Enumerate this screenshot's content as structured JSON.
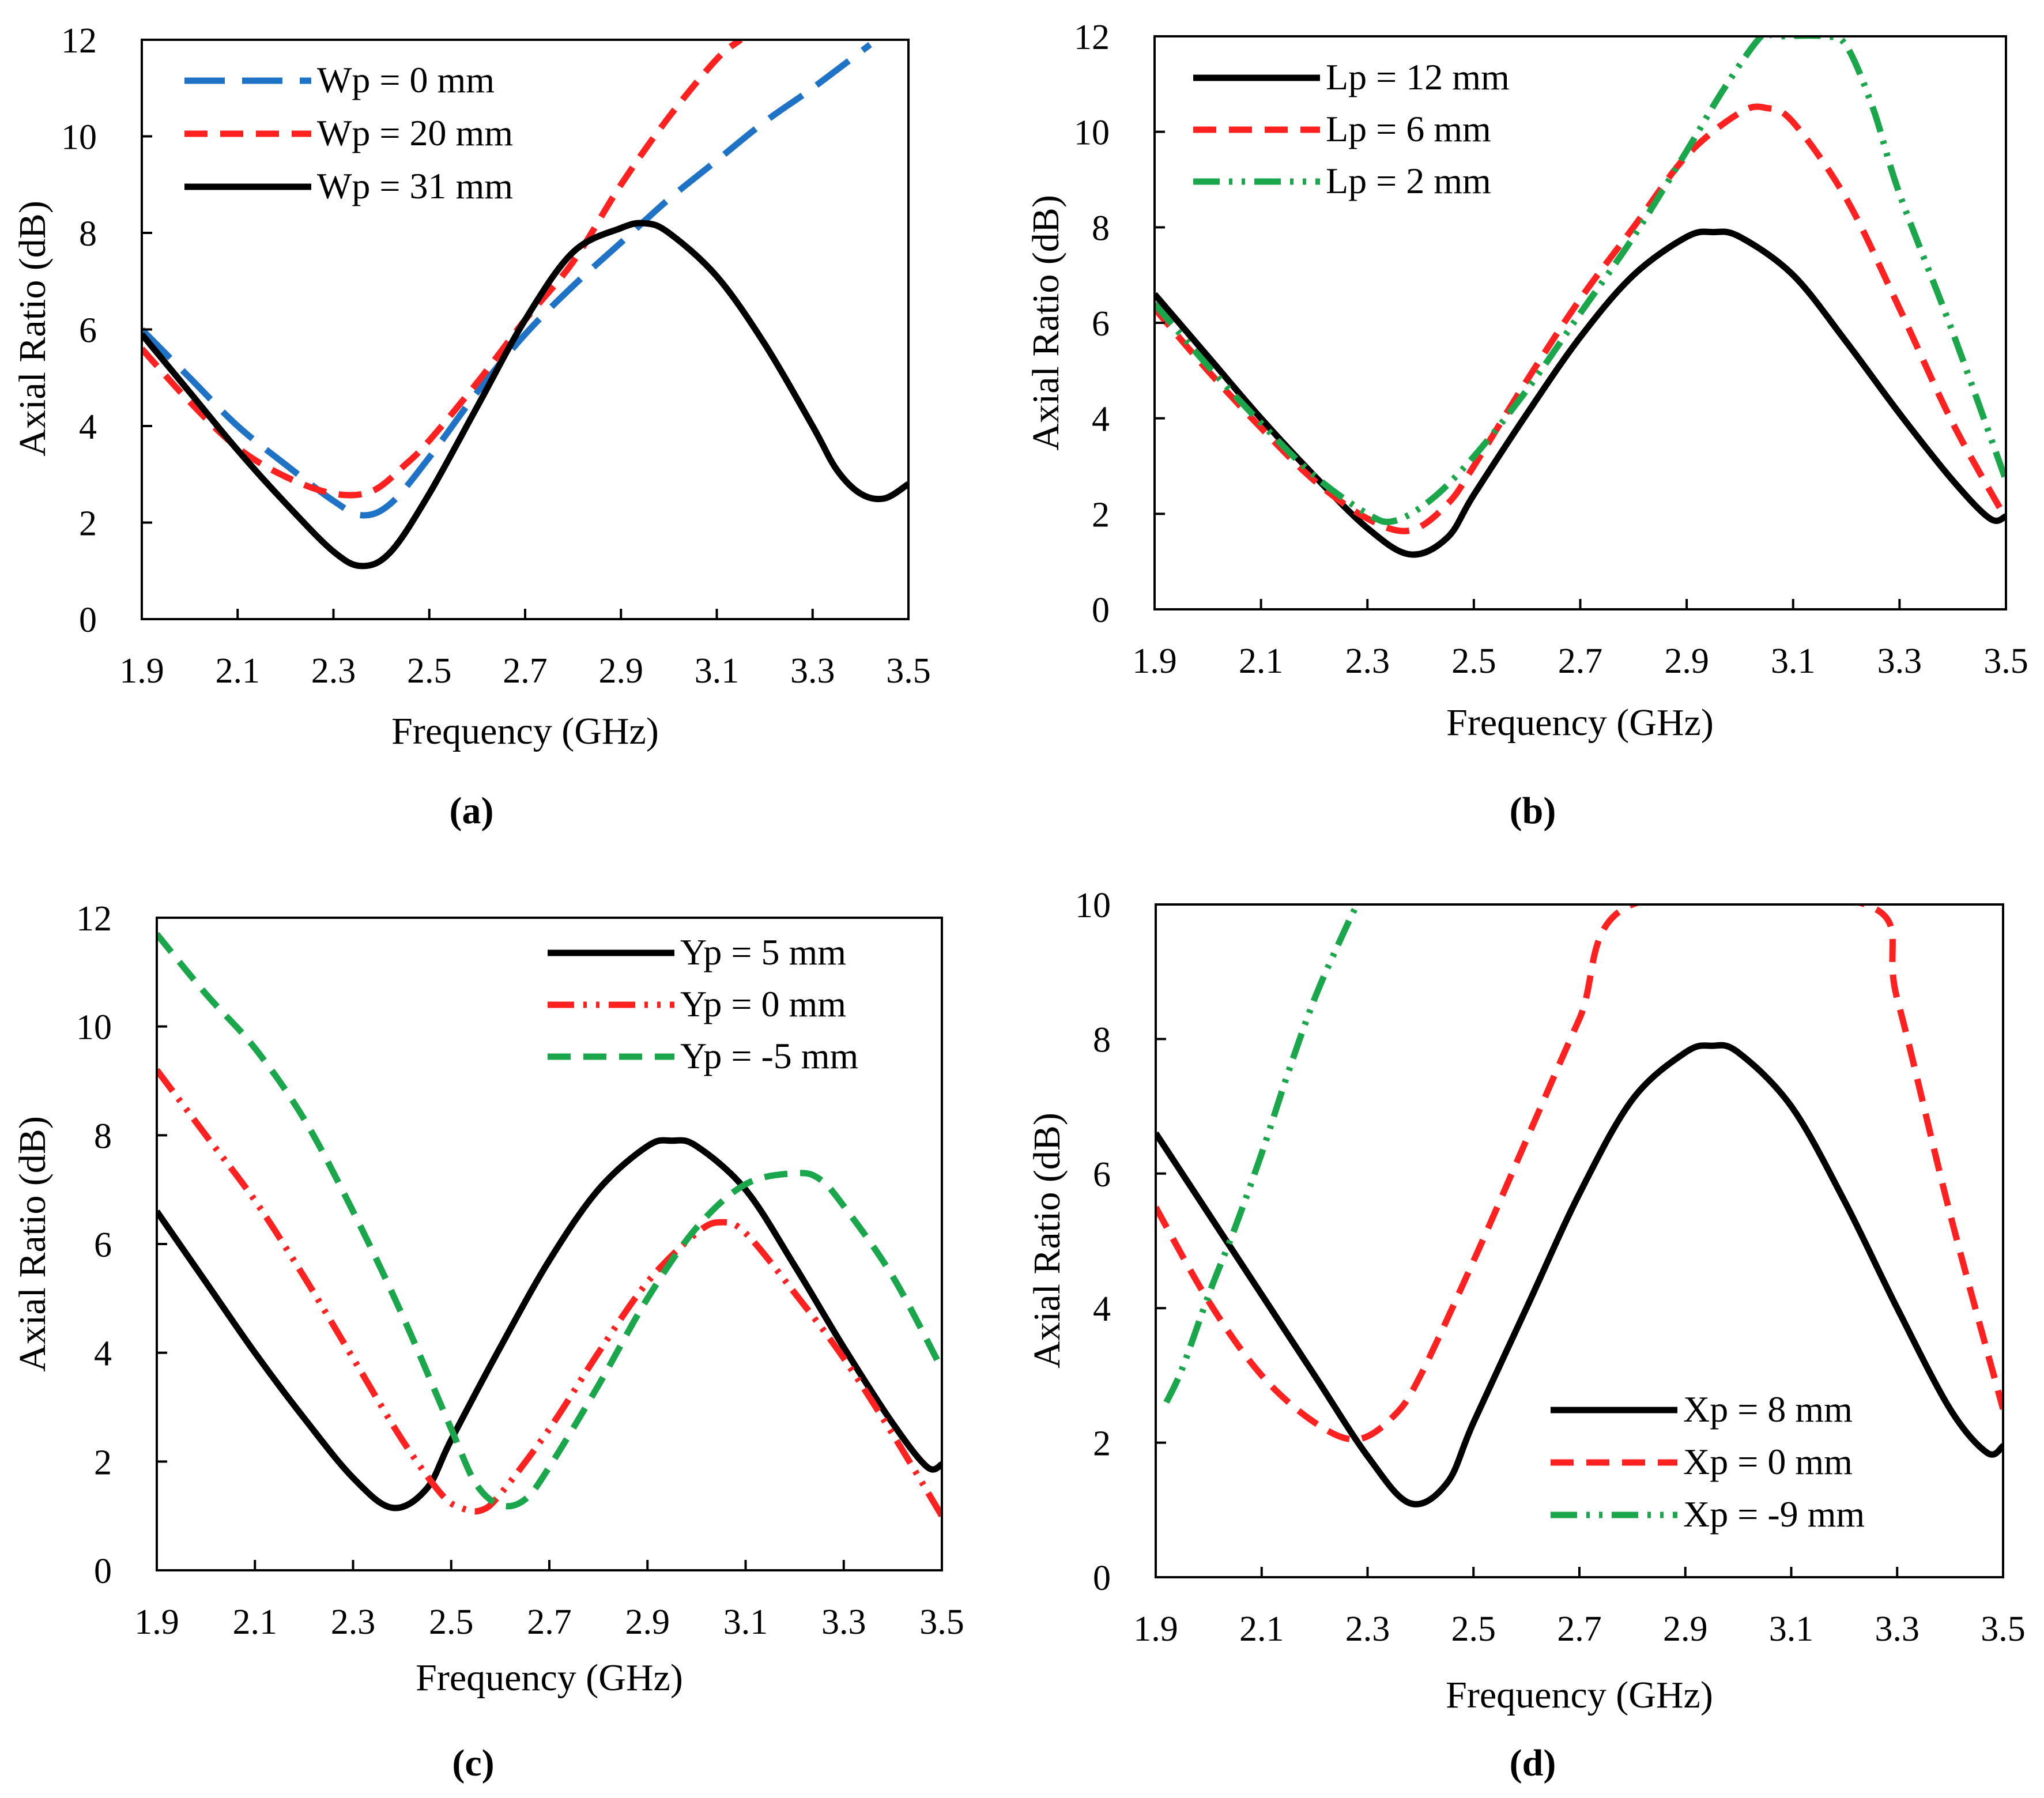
{
  "figure": {
    "panel_labels": [
      "(a)",
      "(b)",
      "(c)",
      "(d)"
    ]
  },
  "chart_data": [
    {
      "type": "line",
      "panel": "a",
      "title": "",
      "xlabel": "Frequency (GHz)",
      "ylabel": "Axial Ratio (dB)",
      "xlim": [
        1.9,
        3.5
      ],
      "ylim": [
        0,
        12
      ],
      "xticks": [
        "1.9",
        "2.1",
        "2.3",
        "2.5",
        "2.7",
        "2.9",
        "3.1",
        "3.3",
        "3.5"
      ],
      "yticks": [
        "0",
        "2",
        "4",
        "6",
        "8",
        "10",
        "12"
      ],
      "legend_position": "top-left",
      "series": [
        {
          "name": "Wp = 0 mm",
          "color": "#1f73c6",
          "style": "long-dash",
          "x": [
            1.9,
            2.0,
            2.1,
            2.2,
            2.3,
            2.36,
            2.42,
            2.5,
            2.6,
            2.7,
            2.8,
            2.9,
            3.0,
            3.1,
            3.2,
            3.3,
            3.42
          ],
          "y": [
            6.0,
            5.0,
            4.0,
            3.2,
            2.45,
            2.15,
            2.4,
            3.35,
            4.7,
            5.9,
            6.9,
            7.8,
            8.7,
            9.5,
            10.3,
            11.0,
            11.9
          ]
        },
        {
          "name": "Wp = 20 mm",
          "color": "#ff2020",
          "style": "dash",
          "x": [
            1.9,
            2.0,
            2.1,
            2.2,
            2.3,
            2.38,
            2.45,
            2.5,
            2.6,
            2.7,
            2.8,
            2.9,
            3.0,
            3.1,
            3.15
          ],
          "y": [
            5.6,
            4.5,
            3.55,
            2.95,
            2.6,
            2.65,
            3.2,
            3.7,
            4.9,
            6.2,
            7.4,
            9.0,
            10.4,
            11.6,
            12.0
          ]
        },
        {
          "name": "Wp = 31 mm",
          "color": "#000000",
          "style": "solid",
          "x": [
            1.9,
            2.0,
            2.1,
            2.2,
            2.3,
            2.36,
            2.42,
            2.5,
            2.6,
            2.7,
            2.8,
            2.9,
            2.95,
            3.0,
            3.1,
            3.2,
            3.3,
            3.35,
            3.4,
            3.45,
            3.5
          ],
          "y": [
            5.9,
            4.7,
            3.5,
            2.4,
            1.4,
            1.1,
            1.4,
            2.6,
            4.4,
            6.2,
            7.6,
            8.1,
            8.2,
            8.0,
            7.1,
            5.7,
            4.0,
            3.1,
            2.6,
            2.5,
            2.8
          ]
        }
      ]
    },
    {
      "type": "line",
      "panel": "b",
      "title": "",
      "xlabel": "Frequency (GHz)",
      "ylabel": "Axial Ratio (dB)",
      "xlim": [
        1.9,
        3.5
      ],
      "ylim": [
        0,
        12
      ],
      "xticks": [
        "1.9",
        "2.1",
        "2.3",
        "2.5",
        "2.7",
        "2.9",
        "3.1",
        "3.3",
        "3.5"
      ],
      "yticks": [
        "0",
        "2",
        "4",
        "6",
        "8",
        "10",
        "12"
      ],
      "legend_position": "top-left",
      "series": [
        {
          "name": "Lp = 12 mm",
          "color": "#000000",
          "style": "solid",
          "x": [
            1.9,
            2.0,
            2.1,
            2.2,
            2.3,
            2.38,
            2.45,
            2.5,
            2.6,
            2.7,
            2.8,
            2.9,
            2.95,
            3.0,
            3.1,
            3.2,
            3.3,
            3.4,
            3.47,
            3.5
          ],
          "y": [
            6.6,
            5.3,
            4.0,
            2.8,
            1.7,
            1.15,
            1.5,
            2.4,
            4.1,
            5.7,
            7.0,
            7.8,
            7.9,
            7.8,
            7.0,
            5.6,
            4.1,
            2.7,
            1.9,
            1.95
          ]
        },
        {
          "name": "Lp = 6 mm",
          "color": "#ff2020",
          "style": "dash",
          "x": [
            1.9,
            2.0,
            2.1,
            2.2,
            2.3,
            2.38,
            2.45,
            2.5,
            2.6,
            2.7,
            2.8,
            2.9,
            3.0,
            3.05,
            3.1,
            3.2,
            3.3,
            3.4,
            3.5
          ],
          "y": [
            6.3,
            5.0,
            3.8,
            2.7,
            1.9,
            1.65,
            2.2,
            3.0,
            4.8,
            6.5,
            8.0,
            9.5,
            10.4,
            10.5,
            10.2,
            8.6,
            6.3,
            3.9,
            1.9
          ]
        },
        {
          "name": "Lp = 2 mm",
          "color": "#1aa64a",
          "style": "dash-dot-dot",
          "x": [
            1.9,
            2.0,
            2.1,
            2.2,
            2.3,
            2.35,
            2.42,
            2.5,
            2.6,
            2.7,
            2.8,
            2.9,
            2.97,
            3.04,
            3.07,
            3.16,
            3.2,
            3.25,
            3.3,
            3.4,
            3.5
          ],
          "y": [
            6.4,
            5.1,
            3.9,
            2.8,
            2.0,
            1.85,
            2.3,
            3.2,
            4.6,
            6.2,
            7.8,
            9.6,
            10.9,
            12.0,
            12.0,
            12.0,
            11.8,
            10.5,
            8.7,
            5.8,
            2.7
          ]
        }
      ]
    },
    {
      "type": "line",
      "panel": "c",
      "title": "",
      "xlabel": "Frequency (GHz)",
      "ylabel": "Axial Ratio (dB)",
      "xlim": [
        1.9,
        3.5
      ],
      "ylim": [
        0,
        12
      ],
      "xticks": [
        "1.9",
        "2.1",
        "2.3",
        "2.5",
        "2.7",
        "2.9",
        "3.1",
        "3.3",
        "3.5"
      ],
      "yticks": [
        "0",
        "2",
        "4",
        "6",
        "8",
        "10",
        "12"
      ],
      "legend_position": "top-right",
      "series": [
        {
          "name": "Yp = 5 mm",
          "color": "#000000",
          "style": "solid",
          "x": [
            1.9,
            2.0,
            2.1,
            2.2,
            2.3,
            2.38,
            2.45,
            2.5,
            2.6,
            2.7,
            2.8,
            2.9,
            2.95,
            3.0,
            3.1,
            3.2,
            3.3,
            3.4,
            3.47,
            3.5
          ],
          "y": [
            6.6,
            5.3,
            4.0,
            2.8,
            1.7,
            1.15,
            1.5,
            2.4,
            4.1,
            5.7,
            7.0,
            7.8,
            7.9,
            7.8,
            7.0,
            5.6,
            4.1,
            2.7,
            1.9,
            1.95
          ]
        },
        {
          "name": "Yp = 0 mm",
          "color": "#ff2020",
          "style": "dash-dot-dot",
          "x": [
            1.9,
            2.0,
            2.1,
            2.2,
            2.3,
            2.4,
            2.48,
            2.52,
            2.56,
            2.6,
            2.7,
            2.8,
            2.9,
            3.0,
            3.05,
            3.1,
            3.2,
            3.3,
            3.4,
            3.5
          ],
          "y": [
            9.2,
            8.0,
            6.8,
            5.4,
            3.9,
            2.4,
            1.4,
            1.15,
            1.1,
            1.4,
            2.6,
            4.0,
            5.3,
            6.2,
            6.4,
            6.2,
            5.1,
            3.9,
            2.5,
            1.0
          ]
        },
        {
          "name": "Yp = -5 mm",
          "color": "#1aa64a",
          "style": "dash",
          "x": [
            1.9,
            2.0,
            2.1,
            2.2,
            2.3,
            2.4,
            2.5,
            2.55,
            2.6,
            2.65,
            2.7,
            2.8,
            2.9,
            3.0,
            3.1,
            3.2,
            3.25,
            3.3,
            3.4,
            3.5
          ],
          "y": [
            11.7,
            10.6,
            9.6,
            8.3,
            6.6,
            4.7,
            2.6,
            1.6,
            1.2,
            1.3,
            1.9,
            3.4,
            5.0,
            6.3,
            7.1,
            7.3,
            7.2,
            6.7,
            5.4,
            3.7
          ]
        }
      ]
    },
    {
      "type": "line",
      "panel": "d",
      "title": "",
      "xlabel": "Frequency (GHz)",
      "ylabel": "Axial Ratio (dB)",
      "xlim": [
        1.9,
        3.5
      ],
      "ylim": [
        0,
        10
      ],
      "xticks": [
        "1.9",
        "2.1",
        "2.3",
        "2.5",
        "2.7",
        "2.9",
        "3.1",
        "3.3",
        "3.5"
      ],
      "yticks": [
        "0",
        "2",
        "4",
        "6",
        "8",
        "10"
      ],
      "legend_position": "bottom-right",
      "series": [
        {
          "name": "Xp = 8 mm",
          "color": "#000000",
          "style": "solid",
          "x": [
            1.9,
            2.0,
            2.1,
            2.2,
            2.3,
            2.38,
            2.45,
            2.5,
            2.6,
            2.7,
            2.8,
            2.9,
            2.95,
            3.0,
            3.1,
            3.2,
            3.3,
            3.4,
            3.47,
            3.5
          ],
          "y": [
            6.6,
            5.4,
            4.2,
            3.0,
            1.8,
            1.1,
            1.4,
            2.3,
            4.0,
            5.7,
            7.1,
            7.8,
            7.9,
            7.8,
            7.0,
            5.6,
            4.0,
            2.5,
            1.85,
            1.95
          ]
        },
        {
          "name": "Xp = 0 mm",
          "color": "#ff2020",
          "style": "dash",
          "x": [
            1.9,
            2.0,
            2.1,
            2.2,
            2.28,
            2.35,
            2.4,
            2.5,
            2.6,
            2.7,
            2.8,
            3.24,
            3.3,
            3.4,
            3.5
          ],
          "y": [
            5.5,
            4.1,
            3.0,
            2.3,
            2.05,
            2.4,
            3.0,
            4.7,
            6.5,
            8.3,
            10.0,
            10.0,
            8.6,
            5.4,
            2.5
          ]
        },
        {
          "name": "Xp = -9 mm",
          "color": "#1aa64a",
          "style": "dash-dot-dot",
          "x": [
            1.92,
            1.95,
            2.0,
            2.05,
            2.1,
            2.15,
            2.2,
            2.25,
            2.28
          ],
          "y": [
            2.6,
            3.1,
            4.2,
            5.2,
            6.3,
            7.5,
            8.6,
            9.5,
            10.0
          ]
        }
      ]
    }
  ]
}
